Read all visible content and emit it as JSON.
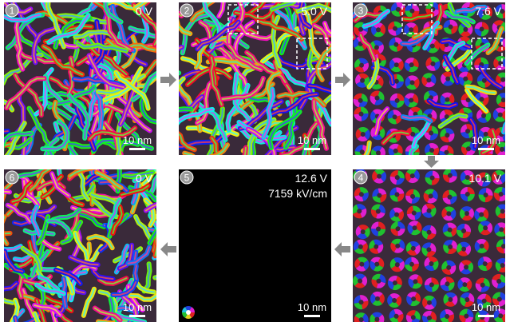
{
  "panels": [
    {
      "number": "1",
      "labels": [
        "0 V"
      ],
      "scale_bar": "10 nm"
    },
    {
      "number": "2",
      "labels": [
        "5.0 V"
      ],
      "scale_bar": "10 nm"
    },
    {
      "number": "3",
      "labels": [
        "7.6 V"
      ],
      "scale_bar": "10 nm"
    },
    {
      "number": "4",
      "labels": [
        "10.1 V"
      ],
      "scale_bar": "10 nm"
    },
    {
      "number": "5",
      "labels": [
        "12.6 V",
        "7159 kV/cm"
      ],
      "scale_bar": "10 nm"
    },
    {
      "number": "6",
      "labels": [
        "0 V"
      ],
      "scale_bar": "10 nm"
    }
  ]
}
